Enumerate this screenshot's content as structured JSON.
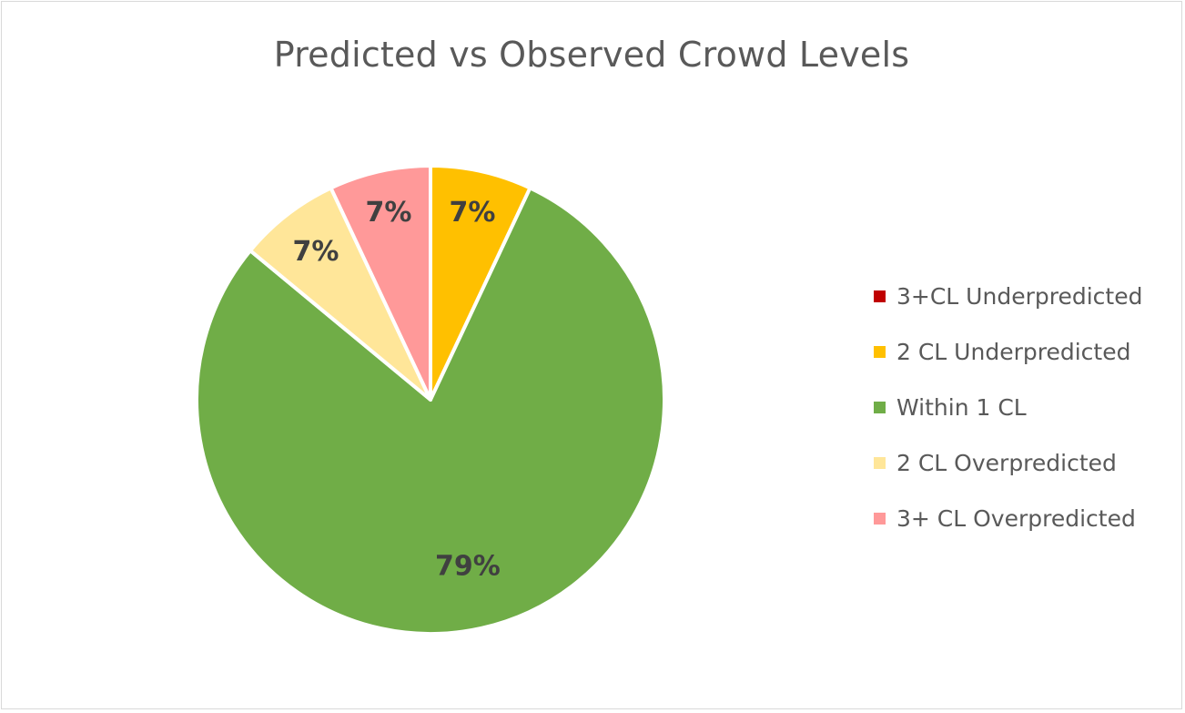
{
  "chart_data": {
    "type": "pie",
    "title": "Predicted vs Observed Crowd Levels",
    "categories": [
      "3+CL Underpredicted",
      "2 CL Underpredicted",
      "Within 1 CL",
      "2 CL Overpredicted",
      "3+ CL Overpredicted"
    ],
    "values": [
      0,
      7,
      79,
      7,
      7
    ],
    "data_labels": [
      "",
      "7%",
      "79%",
      "7%",
      "7%"
    ],
    "colors": [
      "#c00000",
      "#ffc000",
      "#70ad47",
      "#ffe699",
      "#ff9999"
    ],
    "start_angle_deg": 0,
    "direction": "clockwise",
    "legend_position": "right"
  }
}
